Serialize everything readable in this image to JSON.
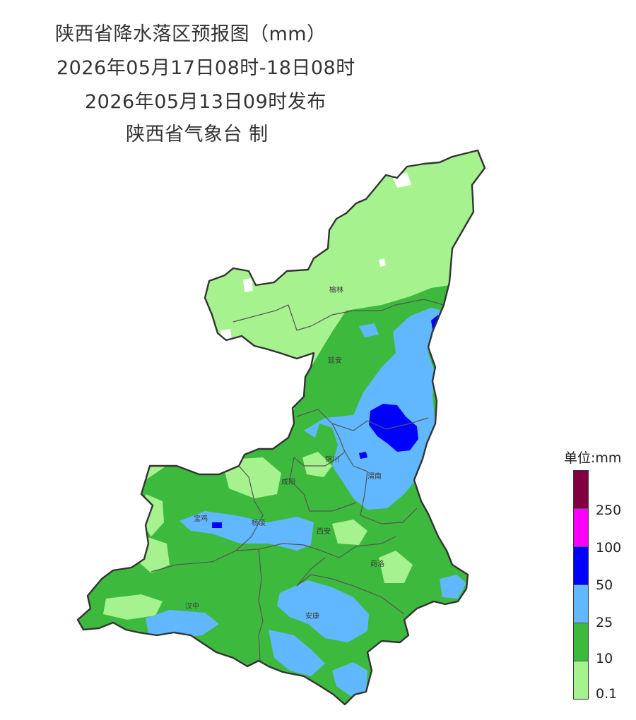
{
  "header": {
    "title": "陕西省降水落区预报图（mm）",
    "valid_period": "2026年05月17日08时-18日08时",
    "issued": "2026年05月13日09时发布",
    "producer": "陕西省气象台  制"
  },
  "map": {
    "region": "陕西省",
    "cities": [
      "榆林",
      "延安",
      "铜川",
      "渭南",
      "咸阳",
      "宝鸡",
      "杨凌",
      "西安",
      "商洛",
      "汉中",
      "安康"
    ]
  },
  "legend": {
    "title": "单位:mm",
    "colors": {
      "0.1": "#a6f28f",
      "10": "#3dba3d",
      "25": "#61b8ff",
      "50": "#0000ff",
      "100": "#fa00fa",
      "250": "#800040"
    },
    "ticks": [
      "250",
      "100",
      "50",
      "25",
      "10",
      "0.1"
    ]
  }
}
